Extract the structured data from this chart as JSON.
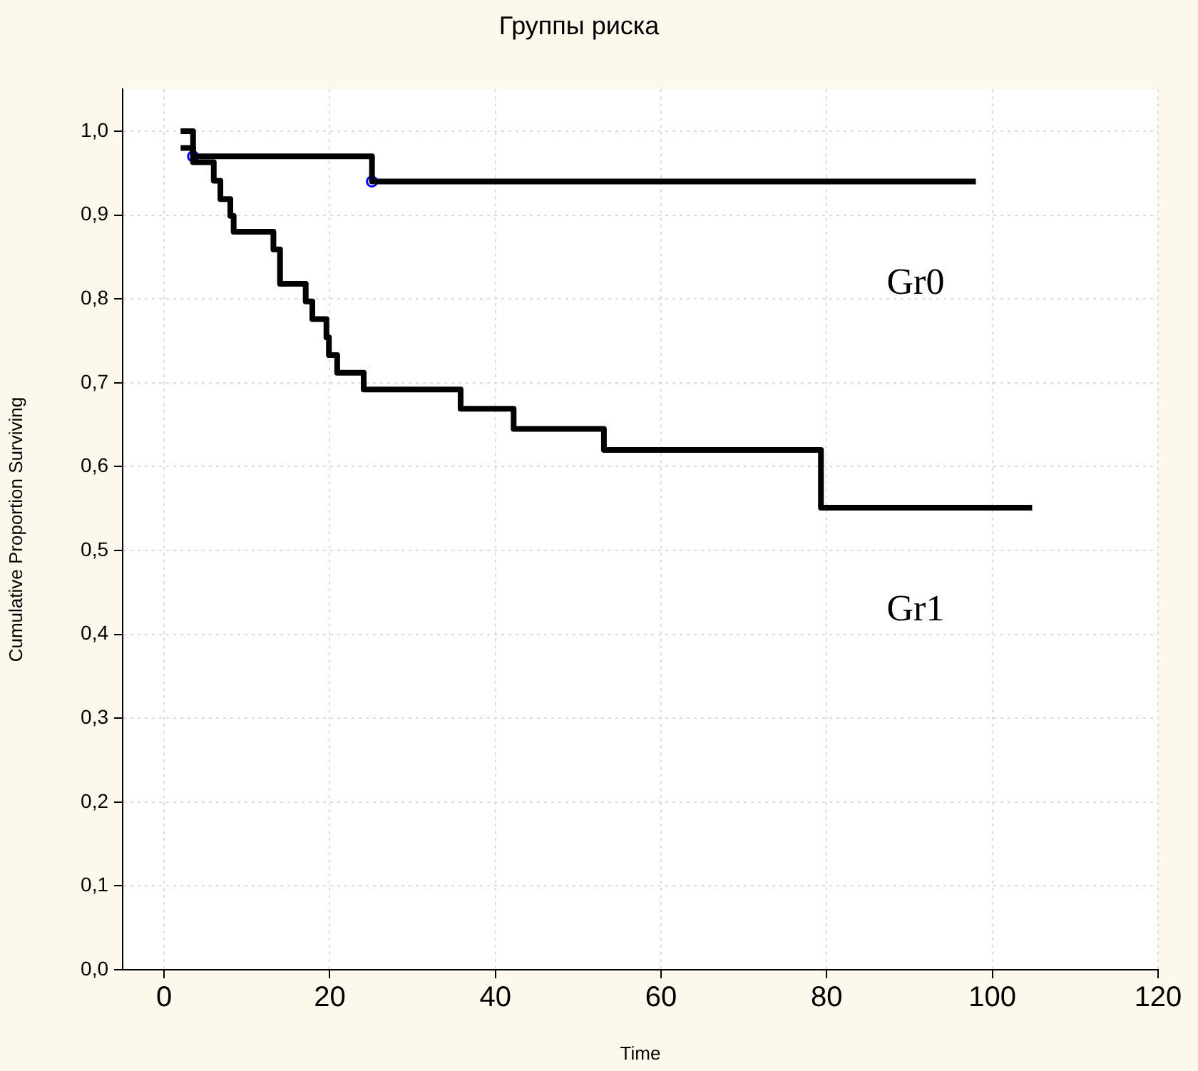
{
  "chart_data": {
    "type": "step",
    "title": "Группы риска",
    "xlabel": "Time",
    "ylabel": "Cumulative Proportion Surviving",
    "xlim": [
      -5,
      120
    ],
    "xticks": [
      0,
      20,
      40,
      60,
      80,
      100,
      120
    ],
    "ylim": [
      0,
      1.05
    ],
    "yticks": [
      {
        "value": 0,
        "label": "0,0"
      },
      {
        "value": 0.1,
        "label": "0,1"
      },
      {
        "value": 0.2,
        "label": "0,2"
      },
      {
        "value": 0.3,
        "label": "0,3"
      },
      {
        "value": 0.4,
        "label": "0,4"
      },
      {
        "value": 0.5,
        "label": "0,5"
      },
      {
        "value": 0.6,
        "label": "0,6"
      },
      {
        "value": 0.7,
        "label": "0,7"
      },
      {
        "value": 0.8,
        "label": "0,8"
      },
      {
        "value": 0.9,
        "label": "0,9"
      },
      {
        "value": 1.0,
        "label": "1,0"
      }
    ],
    "grid": true,
    "line_style": "solid",
    "series": [
      {
        "color": "#000000",
        "marker": "none",
        "x": [
          2,
          3.5,
          25.1,
          98
        ],
        "values": [
          0.98,
          0.97,
          0.94,
          0.94
        ]
      },
      {
        "color": "#000000",
        "marker": "none",
        "x": [
          2,
          3.5,
          6.0,
          6.8,
          8.0,
          8.4,
          13.2,
          14.0,
          17.1,
          17.9,
          19.6,
          19.9,
          20.9,
          24.1,
          35.8,
          42.2,
          53.1,
          79.3,
          104.8
        ],
        "values": [
          1.0,
          0.963,
          0.941,
          0.919,
          0.899,
          0.88,
          0.859,
          0.818,
          0.797,
          0.776,
          0.754,
          0.733,
          0.712,
          0.692,
          0.669,
          0.645,
          0.62,
          0.551,
          0.551
        ]
      },
      {
        "type": "scatter",
        "color": "#0000ff",
        "marker": "circle",
        "x": [
          3.5,
          25.1
        ],
        "values": [
          0.97,
          0.94
        ]
      }
    ],
    "annotations": [
      "Gr0",
      "Gr1"
    ]
  }
}
